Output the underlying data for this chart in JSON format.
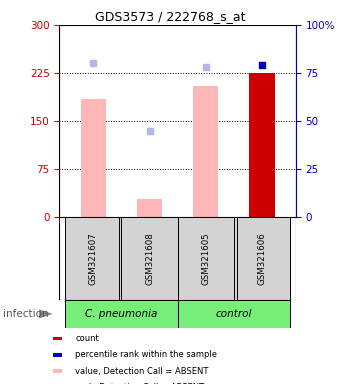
{
  "title": "GDS3573 / 222768_s_at",
  "samples": [
    "GSM321607",
    "GSM321608",
    "GSM321605",
    "GSM321606"
  ],
  "bar_values": [
    185,
    28,
    205,
    225
  ],
  "bar_colors": [
    "#ffb6b6",
    "#ffb6b6",
    "#ffb6b6",
    "#cc0000"
  ],
  "percentile_values": [
    240,
    135,
    235,
    237
  ],
  "percentile_colors": [
    "#b0b8e8",
    "#b0b8e8",
    "#b0b8e8",
    "#0000bb"
  ],
  "ylim_left": [
    0,
    300
  ],
  "ylim_right": [
    0,
    100
  ],
  "yticks_left": [
    0,
    75,
    150,
    225,
    300
  ],
  "yticks_right": [
    0,
    25,
    50,
    75,
    100
  ],
  "ytick_labels_right": [
    "0",
    "25",
    "50",
    "75",
    "100%"
  ],
  "grid_lines": [
    75,
    150,
    225
  ],
  "group_label": "infection",
  "groups": [
    {
      "label": "C. pneumonia",
      "start": 0,
      "end": 1,
      "color": "#77ee77"
    },
    {
      "label": "control",
      "start": 2,
      "end": 3,
      "color": "#77ee77"
    }
  ],
  "legend_items": [
    "count",
    "percentile rank within the sample",
    "value, Detection Call = ABSENT",
    "rank, Detection Call = ABSENT"
  ],
  "legend_colors": [
    "#cc0000",
    "#0000bb",
    "#ffb6b6",
    "#b0b8e8"
  ],
  "axis_left_color": "#cc0000",
  "axis_right_color": "#0000bb"
}
